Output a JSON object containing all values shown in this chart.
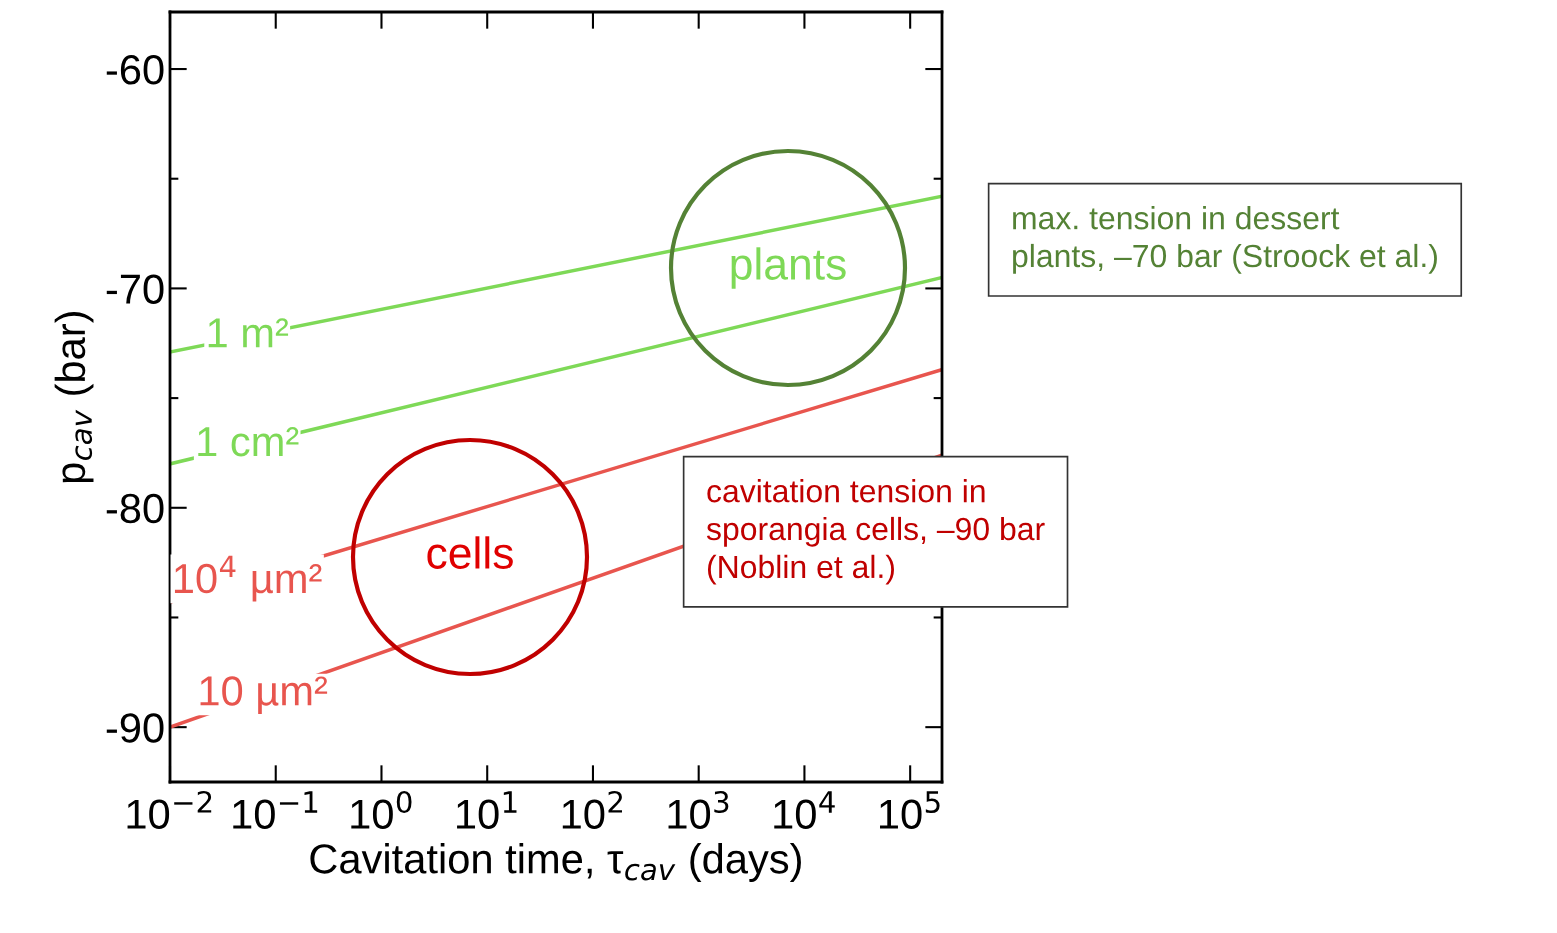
{
  "chart_data": {
    "type": "line",
    "xlabel": "Cavitation time, τ$_{cav}$ (days)",
    "ylabel": "p$_{cav}$ (bar)",
    "x": [
      0.01,
      200000
    ],
    "series": [
      {
        "name": "1 m²",
        "color": "#7ed957",
        "values": [
          -72.9,
          -65.8
        ]
      },
      {
        "name": "1 cm²",
        "color": "#7ed957",
        "values": [
          -78.0,
          -69.5
        ]
      },
      {
        "name": "10$^{4}$ µm²",
        "color": "#e8554e",
        "values": [
          -84.3,
          -73.7
        ]
      },
      {
        "name": "10 µm²",
        "color": "#e8554e",
        "values": [
          -90.0,
          -77.6
        ]
      }
    ],
    "log": "x",
    "xlim": [
      0.01,
      200000
    ],
    "xticks": [
      {
        "value": 0.01,
        "label": "10$^{−2}$"
      },
      {
        "value": 0.1,
        "label": "10$^{−1}$"
      },
      {
        "value": 1,
        "label": "10$^{0}$"
      },
      {
        "value": 10,
        "label": "10$^{1}$"
      },
      {
        "value": 100,
        "label": "10$^{2}$"
      },
      {
        "value": 1000,
        "label": "10$^{3}$"
      },
      {
        "value": 10000,
        "label": "10$^{4}$"
      },
      {
        "value": 100000,
        "label": "10$^{5}$"
      }
    ],
    "ylim": [
      -92.5,
      -57.4
    ],
    "yticks": [
      -90,
      {
        "value": -85,
        "label": null
      },
      -80,
      {
        "value": -75,
        "label": null
      },
      -70,
      {
        "value": -65,
        "label": null
      },
      -60
    ],
    "grid": false,
    "legend": false,
    "annotations": [
      "plants",
      "cells",
      "max. tension in dessert plants, –70 bar (Stroock et al.)",
      "cavitation tension in sporangia cells, –90 bar (Noblin et al.)"
    ]
  }
}
